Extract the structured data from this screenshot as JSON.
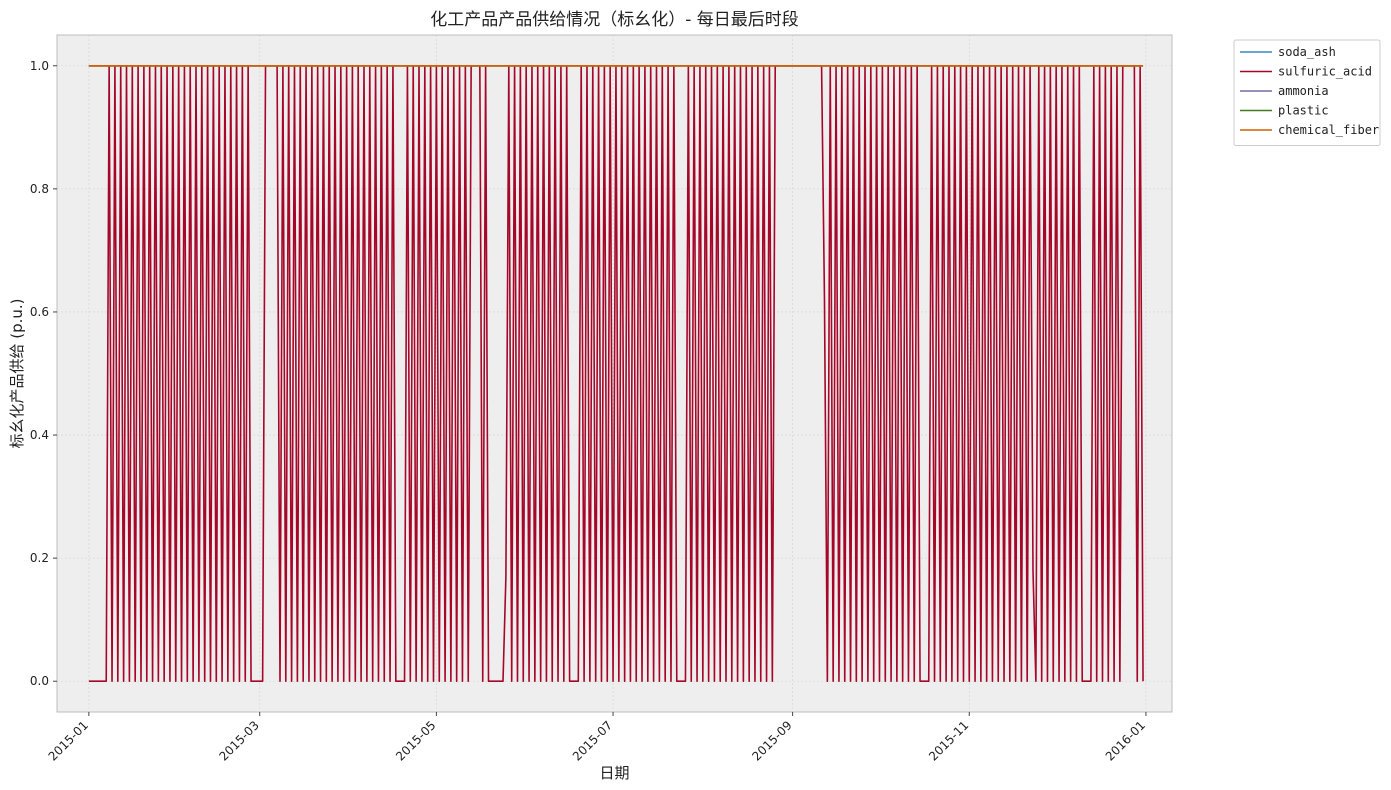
{
  "chart_data": {
    "type": "line",
    "title": "化工产品产品供给情况（标幺化）- 每日最后时段",
    "xlabel": "日期",
    "ylabel": "标幺化产品供给 (p.u.)",
    "x_range": [
      "2014-12-21",
      "2016-01-10"
    ],
    "ylim": [
      -0.05,
      1.05
    ],
    "x_ticks": [
      "2015-01",
      "2015-03",
      "2015-05",
      "2015-07",
      "2015-09",
      "2015-11",
      "2016-01"
    ],
    "y_ticks": [
      "0.0",
      "0.2",
      "0.4",
      "0.6",
      "0.8",
      "1.0"
    ],
    "grid": true,
    "legend_position": "outside-top-right",
    "x_start": "2015-01-01",
    "series": [
      {
        "name": "soda_ash",
        "color": "#348ABD",
        "constant": 1.0
      },
      {
        "name": "sulfuric_acid",
        "color": "#A60628",
        "pattern": {
          "start_value": 0.0,
          "initial_zero_until": "2015-01-07",
          "cycle": "alternating daily between 1.0 and 0.0",
          "end": "2015-12-31",
          "notable_values": [
            {
              "date": "2015-05-25",
              "value": 0.17
            },
            {
              "date": "2015-09-12",
              "value": 0.62
            },
            {
              "date": "2015-11-23",
              "value": 0.18
            }
          ],
          "gaps_at_zero": [
            {
              "from": "2015-02-27",
              "to": "2015-03-02"
            },
            {
              "from": "2015-04-18",
              "to": "2015-04-20"
            },
            {
              "from": "2015-05-20",
              "to": "2015-05-24"
            },
            {
              "from": "2015-06-16",
              "to": "2015-06-18"
            },
            {
              "from": "2015-07-23",
              "to": "2015-07-25"
            },
            {
              "from": "2015-10-15",
              "to": "2015-10-17"
            },
            {
              "from": "2015-12-11",
              "to": "2015-12-13"
            }
          ],
          "gaps_at_one": [
            {
              "from": "2015-03-03",
              "to": "2015-03-06"
            },
            {
              "from": "2015-05-13",
              "to": "2015-05-15"
            },
            {
              "from": "2015-08-27",
              "to": "2015-09-11"
            },
            {
              "from": "2015-12-24",
              "to": "2015-12-27"
            }
          ]
        }
      },
      {
        "name": "ammonia",
        "color": "#7A68A6",
        "constant": 1.0
      },
      {
        "name": "plastic",
        "color": "#467821",
        "constant": 1.0
      },
      {
        "name": "chemical_fiber",
        "color": "#D55E00",
        "constant": 1.0
      }
    ]
  },
  "colors": {
    "plot_background": "#EEEEEE",
    "grid": "#DADADA",
    "frame": "#BCBCBC"
  }
}
